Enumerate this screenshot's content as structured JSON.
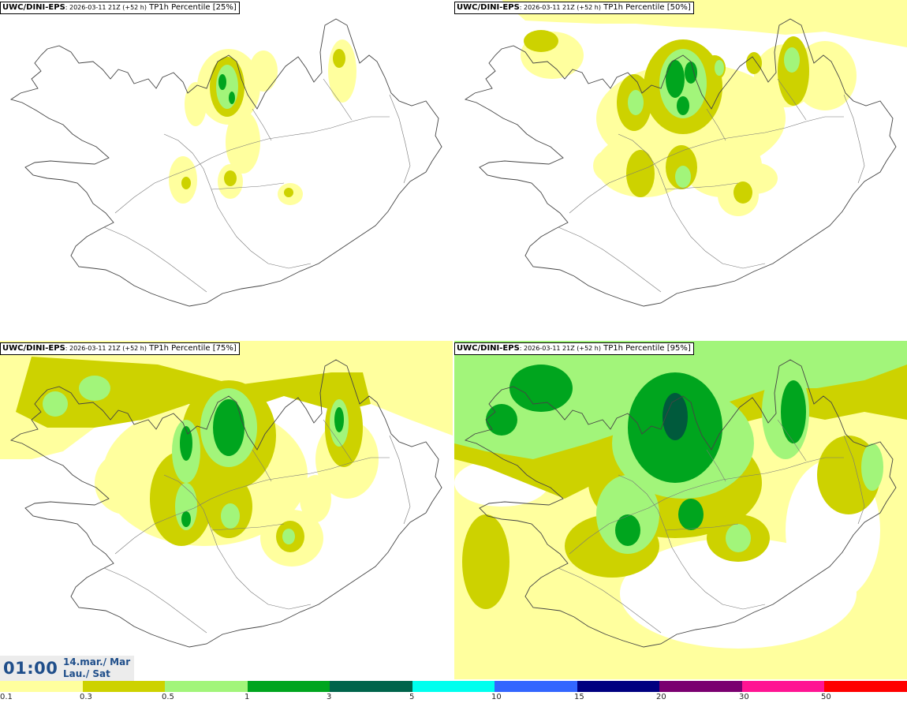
{
  "panels": [
    {
      "model": "UWC/DINI-EPS",
      "run": ": 2026-03-11 21Z (+52 h)",
      "field": " TP1h Percentile [25%]"
    },
    {
      "model": "UWC/DINI-EPS",
      "run": ": 2026-03-11 21Z (+52 h)",
      "field": " TP1h Percentile [50%]"
    },
    {
      "model": "UWC/DINI-EPS",
      "run": ": 2026-03-11 21Z (+52 h)",
      "field": " TP1h Percentile [75%]"
    },
    {
      "model": "UWC/DINI-EPS",
      "run": ": 2026-03-11 21Z (+52 h)",
      "field": " TP1h Percentile [95%]"
    }
  ],
  "time": {
    "clock": "01:00",
    "date_line1": "14.mar./ Mar",
    "date_line2": "Lau./ Sat"
  },
  "legend": {
    "labels": [
      "0.1",
      "0.3",
      "0.5",
      "1",
      "3",
      "5",
      "10",
      "15",
      "20",
      "30",
      "50"
    ],
    "colors": [
      "#ffff9e",
      "#cdd200",
      "#a2f57a",
      "#00a51e",
      "#00644b",
      "#00ffee",
      "#3366ff",
      "#000080",
      "#7a0070",
      "#ff1493",
      "#ff0000"
    ]
  },
  "map_colors": {
    "light": "#ffff9e",
    "olive": "#cdd200",
    "lightgreen": "#a2f57a",
    "green": "#00a51e",
    "dark": "#005a3c",
    "coast": "#444444"
  }
}
